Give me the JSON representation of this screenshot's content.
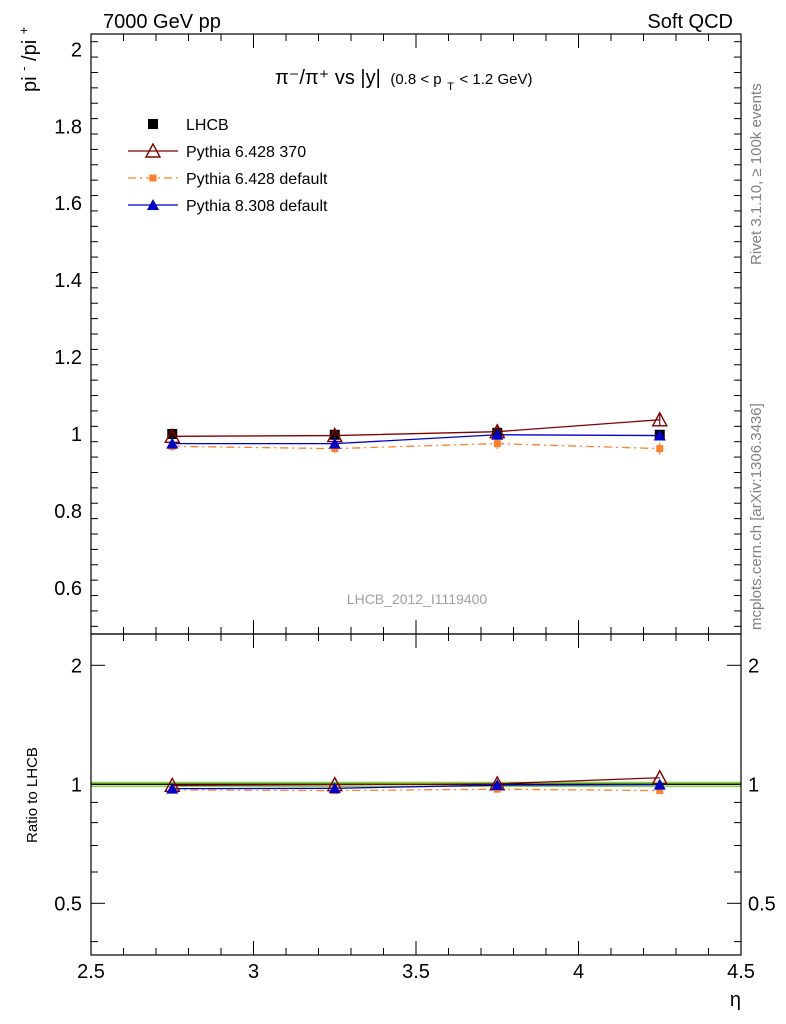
{
  "header": {
    "left": "7000 GeV pp",
    "right": "Soft QCD"
  },
  "side_text": {
    "rivet": "Rivet 3.1.10, ≥ 100k events",
    "mcplots": "mcplots.cern.ch [arXiv:1306.3436]"
  },
  "chart_data": [
    {
      "type": "scatter",
      "title_main": "π⁻/π⁺ vs |y|",
      "title_sub": "(0.8 < p",
      "title_sub_sub": "T",
      "title_sub_end": " < 1.2 GeV)",
      "ylabel_base": "pi",
      "ylabel_sup1": "-",
      "ylabel_mid": "/pi",
      "ylabel_sup2": "+",
      "watermark": "LHCB_2012_I1119400",
      "xlim": [
        2.5,
        4.5
      ],
      "ylim": [
        0.48,
        2.04
      ],
      "yticks": [
        "0.6",
        "0.8",
        "1",
        "1.2",
        "1.4",
        "1.6",
        "1.8",
        "2"
      ],
      "ytick_values": [
        0.6,
        0.8,
        1.0,
        1.2,
        1.4,
        1.6,
        1.8,
        2.0
      ],
      "legend_position": "top-left",
      "x": [
        2.75,
        3.25,
        3.75,
        4.25
      ],
      "series": [
        {
          "name": "LHCB",
          "color": "#000000",
          "marker": "square",
          "line": "none",
          "values": [
            1.0,
            0.998,
            1.003,
            0.998
          ],
          "errors": [
            0.006,
            0.006,
            0.008,
            0.01
          ]
        },
        {
          "name": "Pythia 6.428 370",
          "color": "#800000",
          "marker": "triangle-open",
          "line": "solid",
          "values": [
            0.994,
            0.996,
            1.006,
            1.037
          ],
          "errors": [
            0.012,
            0.012,
            0.014,
            0.016
          ]
        },
        {
          "name": "Pythia 6.428 default",
          "color": "#ff7f2a",
          "marker": "square-small",
          "line": "dashdot",
          "values": [
            0.968,
            0.962,
            0.975,
            0.962
          ],
          "errors": [
            0.012,
            0.012,
            0.014,
            0.016
          ]
        },
        {
          "name": "Pythia 8.308 default",
          "color": "#0000cc",
          "marker": "triangle",
          "line": "solid",
          "values": [
            0.975,
            0.975,
            0.998,
            0.996
          ],
          "errors": [
            0.01,
            0.01,
            0.012,
            0.012
          ]
        }
      ]
    },
    {
      "type": "scatter",
      "ylabel": "Ratio to LHCB",
      "xlabel": "η",
      "xlim": [
        2.5,
        4.5
      ],
      "xticks": [
        "2.5",
        "3",
        "3.5",
        "4",
        "4.5"
      ],
      "xtick_values": [
        2.5,
        3.0,
        3.5,
        4.0,
        4.5
      ],
      "ylim": [
        0.37,
        2.4
      ],
      "log_scale_y": true,
      "yticks": [
        "0.5",
        "1",
        "2"
      ],
      "ytick_values": [
        0.5,
        1.0,
        2.0
      ],
      "band_color": "#ccff66",
      "band_edge_color": "#66cc33",
      "x": [
        2.75,
        3.25,
        3.75,
        4.25
      ],
      "series": [
        {
          "name": "Pythia 6.428 370",
          "color": "#800000",
          "marker": "triangle-open",
          "line": "solid",
          "values": [
            0.994,
            0.998,
            1.003,
            1.039
          ]
        },
        {
          "name": "Pythia 6.428 default",
          "color": "#ff7f2a",
          "marker": "square-small",
          "line": "dashdot",
          "values": [
            0.968,
            0.964,
            0.972,
            0.964
          ]
        },
        {
          "name": "Pythia 8.308 default",
          "color": "#0000cc",
          "marker": "triangle",
          "line": "solid",
          "values": [
            0.975,
            0.977,
            0.995,
            0.998
          ]
        }
      ]
    }
  ]
}
